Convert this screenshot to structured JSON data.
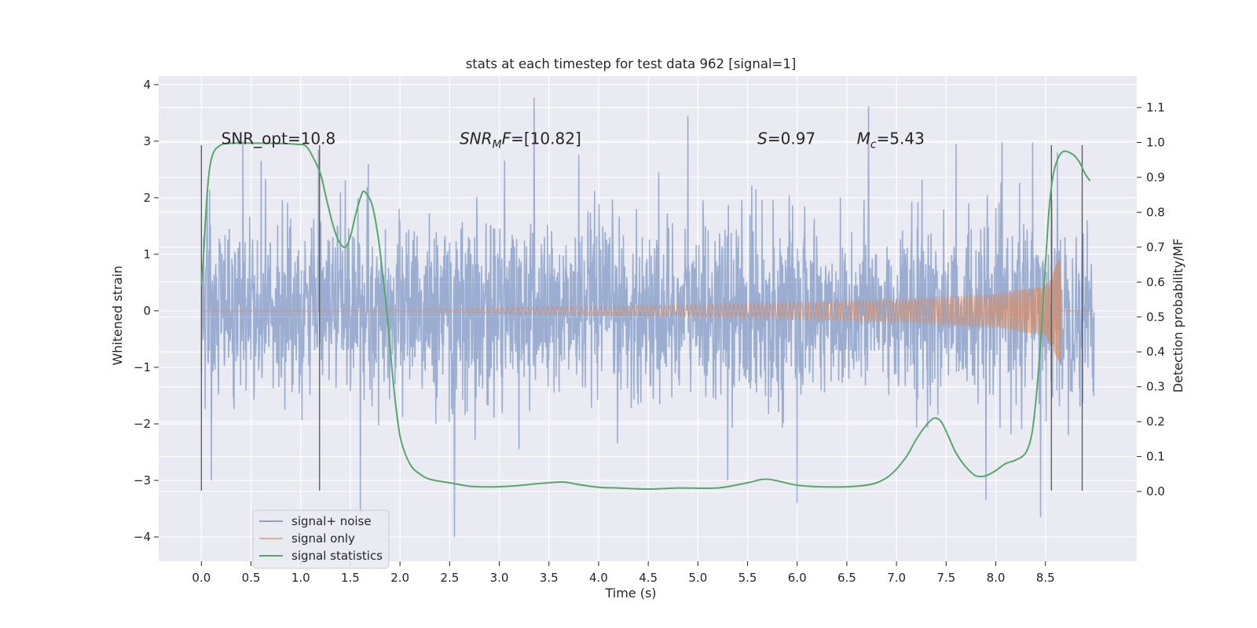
{
  "chart_data": {
    "type": "line",
    "title": "stats at each timestep for test data 962 [signal=1]",
    "xlabel": "Time (s)",
    "ylabel_left": "Whitened strain",
    "ylabel_right": "Detection probability/MF",
    "xlim": [
      -0.43,
      9.42
    ],
    "ylim_left": [
      -4.43,
      4.15
    ],
    "ylim_right": [
      -0.2,
      1.19
    ],
    "x_ticks": [
      0.0,
      0.5,
      1.0,
      1.5,
      2.0,
      2.5,
      3.0,
      3.5,
      4.0,
      4.5,
      5.0,
      5.5,
      6.0,
      6.5,
      7.0,
      7.5,
      8.0,
      8.5
    ],
    "x_tick_labels": [
      "0.0",
      "0.5",
      "1.0",
      "1.5",
      "2.0",
      "2.5",
      "3.0",
      "3.5",
      "4.0",
      "4.5",
      "5.0",
      "5.5",
      "6.0",
      "6.5",
      "7.0",
      "7.5",
      "8.0",
      "8.5"
    ],
    "y_left_ticks": [
      -4,
      -3,
      -2,
      -1,
      0,
      1,
      2,
      3,
      4
    ],
    "y_left_tick_labels": [
      "−4",
      "−3",
      "−2",
      "−1",
      "0",
      "1",
      "2",
      "3",
      "4"
    ],
    "y_right_ticks": [
      0.0,
      0.1,
      0.2,
      0.3,
      0.4,
      0.5,
      0.6,
      0.7,
      0.8,
      0.9,
      1.0,
      1.1
    ],
    "y_right_tick_labels": [
      "0.0",
      "0.1",
      "0.2",
      "0.3",
      "0.4",
      "0.5",
      "0.6",
      "0.7",
      "0.8",
      "0.9",
      "1.0",
      "1.1"
    ],
    "grid": true,
    "legend_placement": "lower-left",
    "annotations": [
      {
        "parts": [
          {
            "text": "SNR_opt=10.8",
            "italic": false
          }
        ],
        "x": 0.2,
        "y": 2.95
      },
      {
        "parts": [
          {
            "text": "SNR",
            "italic": true
          },
          {
            "text": "M",
            "italic": true,
            "sub": true
          },
          {
            "text": "F",
            "italic": true
          },
          {
            "text": "=[10.82]",
            "italic": false
          }
        ],
        "x": 2.6,
        "y": 2.95
      },
      {
        "parts": [
          {
            "text": "S",
            "italic": true
          },
          {
            "text": "=0.97",
            "italic": false
          }
        ],
        "x": 5.6,
        "y": 2.95
      },
      {
        "parts": [
          {
            "text": "M",
            "italic": true
          },
          {
            "text": "c",
            "italic": true,
            "sub": true
          },
          {
            "text": "=5.43",
            "italic": false
          }
        ],
        "x": 6.6,
        "y": 2.95
      }
    ],
    "vertical_markers": [
      {
        "x": 0.0,
        "y_range": [
          -3.18,
          2.93
        ]
      },
      {
        "x": 1.19,
        "y_range": [
          -3.18,
          2.93
        ]
      },
      {
        "x": 8.56,
        "y_range": [
          -3.18,
          2.93
        ]
      },
      {
        "x": 8.87,
        "y_range": [
          -3.18,
          2.93
        ]
      }
    ],
    "series": [
      {
        "name": "signal+ noise",
        "color": "#4c72b0",
        "axis": "left",
        "kind": "noise",
        "x_range": [
          0.0,
          8.99
        ],
        "typical_amplitude": 1.0,
        "peaks": [
          [
            0.1,
            -3.0
          ],
          [
            0.42,
            3.0
          ],
          [
            0.6,
            2.65
          ],
          [
            1.18,
            2.85
          ],
          [
            1.6,
            -3.6
          ],
          [
            1.68,
            2.6
          ],
          [
            2.55,
            -4.0
          ],
          [
            3.35,
            3.77
          ],
          [
            3.8,
            2.75
          ],
          [
            4.9,
            3.45
          ],
          [
            5.3,
            -3.0
          ],
          [
            6.0,
            -3.4
          ],
          [
            6.72,
            3.62
          ],
          [
            7.6,
            2.95
          ],
          [
            7.9,
            -3.35
          ],
          [
            8.37,
            2.98
          ],
          [
            8.45,
            -3.65
          ],
          [
            8.62,
            2.8
          ]
        ]
      },
      {
        "name": "signal only",
        "color": "#dd8452",
        "axis": "left",
        "kind": "chirp",
        "x_range": [
          0.0,
          8.99
        ],
        "envelope": [
          [
            0.0,
            0.0
          ],
          [
            2.0,
            0.01
          ],
          [
            3.0,
            0.05
          ],
          [
            4.0,
            0.08
          ],
          [
            5.0,
            0.11
          ],
          [
            6.0,
            0.15
          ],
          [
            7.0,
            0.2
          ],
          [
            8.0,
            0.3
          ],
          [
            8.5,
            0.45
          ],
          [
            8.65,
            0.93
          ],
          [
            8.66,
            -0.02
          ],
          [
            8.99,
            0.0
          ]
        ]
      },
      {
        "name": "signal statistics",
        "color": "#55a868",
        "axis": "right",
        "kind": "line",
        "x": [
          0.0,
          0.02,
          0.05,
          0.08,
          0.12,
          0.18,
          0.25,
          0.4,
          0.6,
          0.8,
          0.95,
          1.05,
          1.12,
          1.2,
          1.25,
          1.3,
          1.35,
          1.4,
          1.45,
          1.5,
          1.55,
          1.6,
          1.63,
          1.67,
          1.72,
          1.78,
          1.83,
          1.88,
          1.92,
          1.96,
          2.0,
          2.05,
          2.12,
          2.2,
          2.3,
          2.5,
          2.7,
          2.9,
          3.1,
          3.3,
          3.5,
          3.65,
          3.8,
          4.0,
          4.2,
          4.5,
          4.8,
          5.2,
          5.5,
          5.7,
          6.0,
          6.3,
          6.6,
          6.8,
          6.95,
          7.1,
          7.2,
          7.3,
          7.38,
          7.45,
          7.52,
          7.6,
          7.7,
          7.8,
          7.9,
          8.0,
          8.1,
          8.2,
          8.3,
          8.36,
          8.4,
          8.45,
          8.5,
          8.54,
          8.58,
          8.62,
          8.66,
          8.7,
          8.75,
          8.8,
          8.85,
          8.9,
          8.95
        ],
        "values": [
          0.59,
          0.67,
          0.82,
          0.92,
          0.97,
          0.99,
          0.997,
          0.998,
          0.998,
          0.997,
          0.995,
          0.99,
          0.96,
          0.91,
          0.85,
          0.79,
          0.74,
          0.71,
          0.7,
          0.73,
          0.79,
          0.84,
          0.86,
          0.85,
          0.82,
          0.73,
          0.61,
          0.48,
          0.35,
          0.24,
          0.16,
          0.11,
          0.07,
          0.05,
          0.035,
          0.025,
          0.015,
          0.013,
          0.015,
          0.02,
          0.025,
          0.027,
          0.02,
          0.012,
          0.01,
          0.007,
          0.01,
          0.01,
          0.025,
          0.035,
          0.018,
          0.013,
          0.015,
          0.025,
          0.05,
          0.1,
          0.15,
          0.19,
          0.21,
          0.2,
          0.16,
          0.11,
          0.07,
          0.045,
          0.045,
          0.06,
          0.08,
          0.09,
          0.11,
          0.16,
          0.25,
          0.42,
          0.65,
          0.82,
          0.91,
          0.95,
          0.97,
          0.975,
          0.97,
          0.96,
          0.94,
          0.91,
          0.89
        ]
      }
    ]
  }
}
